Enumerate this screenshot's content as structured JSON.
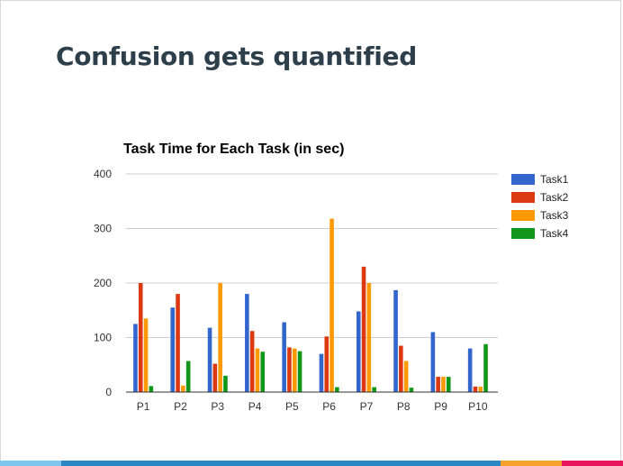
{
  "slide": {
    "title": "Confusion gets quantified",
    "footer_colors": [
      "#7fc6ef",
      "#2a87c5",
      "#f5a12c",
      "#e8175d"
    ]
  },
  "chart_data": {
    "type": "bar",
    "title": "Task Time for Each Task (in sec)",
    "xlabel": "",
    "ylabel": "",
    "ylim": [
      0,
      400
    ],
    "yticks": [
      0,
      100,
      200,
      300,
      400
    ],
    "grid": true,
    "legend_position": "right",
    "categories": [
      "P1",
      "P2",
      "P3",
      "P4",
      "P5",
      "P6",
      "P7",
      "P8",
      "P9",
      "P10"
    ],
    "series": [
      {
        "name": "Task1",
        "color": "#3366cc",
        "values": [
          125,
          155,
          118,
          180,
          128,
          70,
          148,
          187,
          110,
          80
        ]
      },
      {
        "name": "Task2",
        "color": "#dc3912",
        "values": [
          200,
          180,
          52,
          112,
          82,
          102,
          230,
          85,
          28,
          10
        ]
      },
      {
        "name": "Task3",
        "color": "#ff9900",
        "values": [
          135,
          12,
          200,
          80,
          80,
          318,
          200,
          57,
          28,
          10
        ]
      },
      {
        "name": "Task4",
        "color": "#109618",
        "values": [
          11,
          57,
          30,
          74,
          75,
          9,
          9,
          8,
          28,
          88
        ]
      }
    ]
  }
}
